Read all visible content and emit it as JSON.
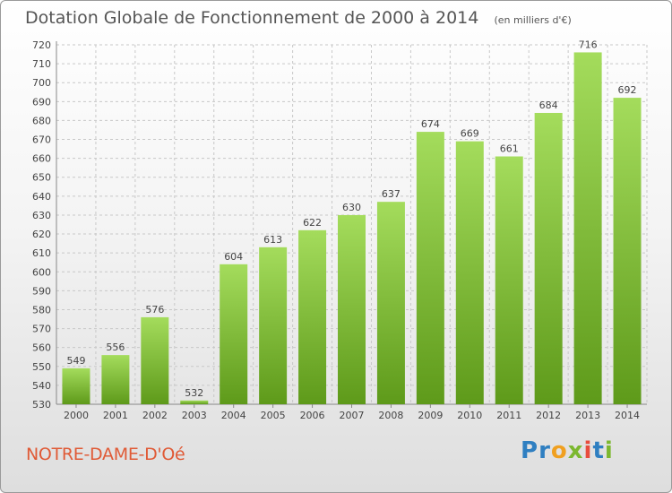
{
  "header": {
    "title": "Dotation Globale de Fonctionnement de 2000 à 2014",
    "unit": "(en milliers d'€)"
  },
  "footer": {
    "place": "NOTRE-DAME-D'Oé",
    "brand": "Proxiti",
    "brand_letters": [
      "P",
      "r",
      "o",
      "x",
      "i",
      "t",
      "i"
    ],
    "brand_colors": [
      "#2f7fc1",
      "#2f7fc1",
      "#f0a020",
      "#7cb82f",
      "#e84c3d",
      "#2f7fc1",
      "#7cb82f"
    ]
  },
  "colors": {
    "bar_top": "#a4dc5c",
    "bar_bottom": "#5e9a1a",
    "grid": "#c8c8c8",
    "axis_text": "#444444"
  },
  "chart_data": {
    "type": "bar",
    "title": "Dotation Globale de Fonctionnement de 2000 à 2014",
    "subtitle": "(en milliers d'€)",
    "xlabel": "",
    "ylabel": "",
    "categories": [
      "2000",
      "2001",
      "2002",
      "2003",
      "2004",
      "2005",
      "2006",
      "2007",
      "2008",
      "2009",
      "2010",
      "2011",
      "2012",
      "2013",
      "2014"
    ],
    "values": [
      549,
      556,
      576,
      532,
      604,
      613,
      622,
      630,
      637,
      674,
      669,
      661,
      684,
      716,
      692
    ],
    "ylim": [
      530,
      720
    ],
    "yticks": [
      530,
      540,
      550,
      560,
      570,
      580,
      590,
      600,
      610,
      620,
      630,
      640,
      650,
      660,
      670,
      680,
      690,
      700,
      710,
      720
    ],
    "grid": true,
    "legend": "none"
  }
}
